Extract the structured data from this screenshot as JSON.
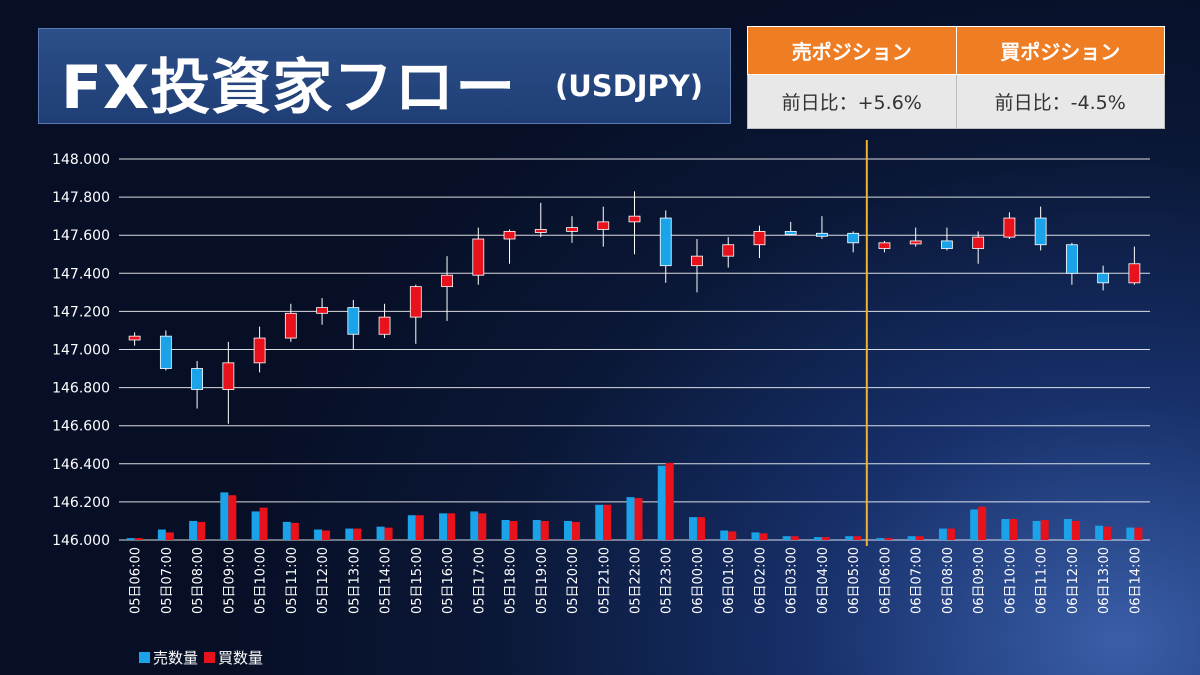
{
  "header": {
    "title": "FX投資家フロー",
    "subtitle": "(USDJPY)"
  },
  "positions": {
    "sell_label": "売ポジション",
    "buy_label": "買ポジション",
    "sell_change": "前日比：+5.6%",
    "buy_change": "前日比：-4.5%"
  },
  "colors": {
    "sell": "#1aa3e8",
    "buy": "#e8121c",
    "divider": "#f2b22c",
    "header_orange": "#ef7d24"
  },
  "chart_data": {
    "type": "candlestick+bar",
    "categories": [
      "05日06:00",
      "05日07:00",
      "05日08:00",
      "05日09:00",
      "05日10:00",
      "05日11:00",
      "05日12:00",
      "05日13:00",
      "05日14:00",
      "05日15:00",
      "05日16:00",
      "05日17:00",
      "05日18:00",
      "05日19:00",
      "05日20:00",
      "05日21:00",
      "05日22:00",
      "05日23:00",
      "06日00:00",
      "06日01:00",
      "06日02:00",
      "06日03:00",
      "06日04:00",
      "06日05:00",
      "06日06:00",
      "06日07:00",
      "06日08:00",
      "06日09:00",
      "06日10:00",
      "06日11:00",
      "06日12:00",
      "06日13:00",
      "06日14:00"
    ],
    "yticks": [
      "148.000",
      "147.800",
      "147.600",
      "147.400",
      "147.200",
      "147.000",
      "146.800",
      "146.600",
      "146.400",
      "146.200",
      "146.000"
    ],
    "ylim": [
      146.0,
      148.0
    ],
    "grid": true,
    "divider_after_category": "06日05:00",
    "candles": [
      {
        "o": 147.05,
        "h": 147.09,
        "l": 147.02,
        "c": 147.07
      },
      {
        "o": 147.07,
        "h": 147.1,
        "l": 146.89,
        "c": 146.9
      },
      {
        "o": 146.9,
        "h": 146.94,
        "l": 146.69,
        "c": 146.79
      },
      {
        "o": 146.79,
        "h": 147.04,
        "l": 146.61,
        "c": 146.93
      },
      {
        "o": 146.93,
        "h": 147.12,
        "l": 146.88,
        "c": 147.06
      },
      {
        "o": 147.06,
        "h": 147.24,
        "l": 147.04,
        "c": 147.19
      },
      {
        "o": 147.19,
        "h": 147.27,
        "l": 147.13,
        "c": 147.22
      },
      {
        "o": 147.22,
        "h": 147.26,
        "l": 147.0,
        "c": 147.08
      },
      {
        "o": 147.08,
        "h": 147.24,
        "l": 147.06,
        "c": 147.17
      },
      {
        "o": 147.17,
        "h": 147.34,
        "l": 147.03,
        "c": 147.33
      },
      {
        "o": 147.33,
        "h": 147.49,
        "l": 147.15,
        "c": 147.39
      },
      {
        "o": 147.39,
        "h": 147.64,
        "l": 147.34,
        "c": 147.58
      },
      {
        "o": 147.58,
        "h": 147.63,
        "l": 147.45,
        "c": 147.62
      },
      {
        "o": 147.62,
        "h": 147.77,
        "l": 147.59,
        "c": 147.63
      },
      {
        "o": 147.62,
        "h": 147.7,
        "l": 147.56,
        "c": 147.64
      },
      {
        "o": 147.63,
        "h": 147.75,
        "l": 147.54,
        "c": 147.67
      },
      {
        "o": 147.67,
        "h": 147.83,
        "l": 147.5,
        "c": 147.7
      },
      {
        "o": 147.69,
        "h": 147.73,
        "l": 147.35,
        "c": 147.44
      },
      {
        "o": 147.44,
        "h": 147.58,
        "l": 147.3,
        "c": 147.49
      },
      {
        "o": 147.49,
        "h": 147.59,
        "l": 147.43,
        "c": 147.55
      },
      {
        "o": 147.55,
        "h": 147.65,
        "l": 147.48,
        "c": 147.62
      },
      {
        "o": 147.62,
        "h": 147.67,
        "l": 147.6,
        "c": 147.61
      },
      {
        "o": 147.61,
        "h": 147.7,
        "l": 147.58,
        "c": 147.6
      },
      {
        "o": 147.61,
        "h": 147.62,
        "l": 147.51,
        "c": 147.56
      },
      {
        "o": 147.53,
        "h": 147.57,
        "l": 147.51,
        "c": 147.56
      },
      {
        "o": 147.56,
        "h": 147.64,
        "l": 147.54,
        "c": 147.57
      },
      {
        "o": 147.57,
        "h": 147.64,
        "l": 147.52,
        "c": 147.53
      },
      {
        "o": 147.53,
        "h": 147.62,
        "l": 147.45,
        "c": 147.59
      },
      {
        "o": 147.59,
        "h": 147.72,
        "l": 147.58,
        "c": 147.69
      },
      {
        "o": 147.69,
        "h": 147.75,
        "l": 147.52,
        "c": 147.55
      },
      {
        "o": 147.55,
        "h": 147.56,
        "l": 147.34,
        "c": 147.4
      },
      {
        "o": 147.4,
        "h": 147.44,
        "l": 147.31,
        "c": 147.35
      },
      {
        "o": 147.35,
        "h": 147.54,
        "l": 147.34,
        "c": 147.45
      }
    ],
    "series": [
      {
        "name": "売数量",
        "color": "#1aa3e8",
        "values": [
          146.01,
          146.055,
          146.1,
          146.25,
          146.15,
          146.095,
          146.055,
          146.06,
          146.07,
          146.13,
          146.14,
          146.15,
          146.105,
          146.105,
          146.1,
          146.185,
          146.225,
          146.39,
          146.12,
          146.05,
          146.04,
          146.02,
          146.015,
          146.02,
          146.01,
          146.02,
          146.06,
          146.16,
          146.11,
          146.1,
          146.11,
          146.075,
          146.065
        ]
      },
      {
        "name": "買数量",
        "color": "#e8121c",
        "values": [
          146.01,
          146.04,
          146.095,
          146.235,
          146.17,
          146.09,
          146.05,
          146.06,
          146.065,
          146.13,
          146.14,
          146.14,
          146.1,
          146.1,
          146.095,
          146.185,
          146.22,
          146.405,
          146.12,
          146.045,
          146.035,
          146.02,
          146.015,
          146.02,
          146.01,
          146.02,
          146.06,
          146.175,
          146.11,
          146.105,
          146.1,
          146.07,
          146.065
        ]
      }
    ]
  }
}
